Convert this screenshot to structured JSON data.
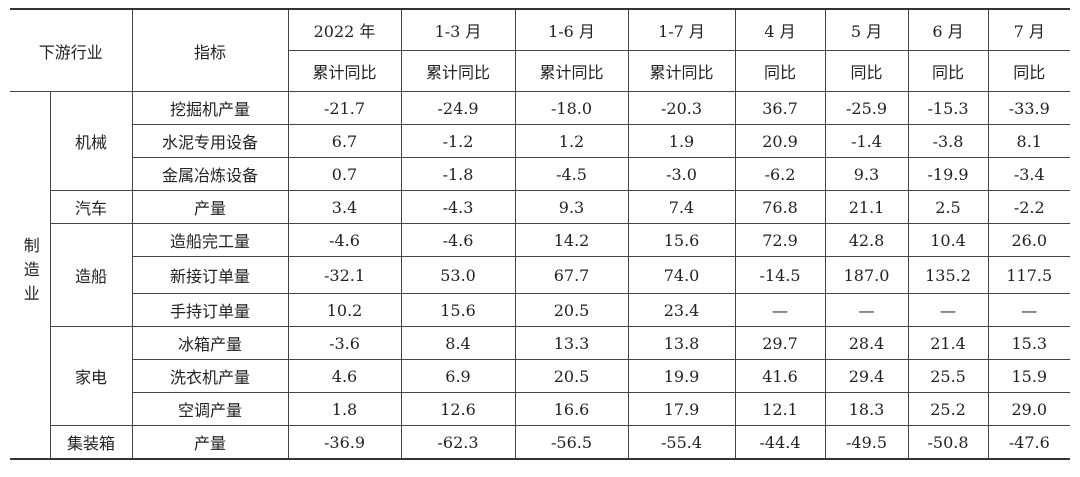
{
  "header": {
    "industry": "下游行业",
    "indicator": "指标",
    "periods": [
      "2022 年",
      "1-3 月",
      "1-6 月",
      "1-7 月",
      "4 月",
      "5 月",
      "6 月",
      "7 月"
    ],
    "measures": [
      "累计同比",
      "累计同比",
      "累计同比",
      "累计同比",
      "同比",
      "同比",
      "同比",
      "同比"
    ]
  },
  "sector": "制造业",
  "groups": [
    {
      "name": "机械",
      "rows": [
        {
          "indicator": "挖掘机产量",
          "values": [
            "-21.7",
            "-24.9",
            "-18.0",
            "-20.3",
            "36.7",
            "-25.9",
            "-15.3",
            "-33.9"
          ]
        },
        {
          "indicator": "水泥专用设备",
          "values": [
            "6.7",
            "-1.2",
            "1.2",
            "1.9",
            "20.9",
            "-1.4",
            "-3.8",
            "8.1"
          ]
        },
        {
          "indicator": "金属冶炼设备",
          "values": [
            "0.7",
            "-1.8",
            "-4.5",
            "-3.0",
            "-6.2",
            "9.3",
            "-19.9",
            "-3.4"
          ]
        }
      ]
    },
    {
      "name": "汽车",
      "rows": [
        {
          "indicator": "产量",
          "values": [
            "3.4",
            "-4.3",
            "9.3",
            "7.4",
            "76.8",
            "21.1",
            "2.5",
            "-2.2"
          ]
        }
      ]
    },
    {
      "name": "造船",
      "rows": [
        {
          "indicator": "造船完工量",
          "values": [
            "-4.6",
            "-4.6",
            "14.2",
            "15.6",
            "72.9",
            "42.8",
            "10.4",
            "26.0"
          ]
        },
        {
          "indicator": "新接订单量",
          "values": [
            "-32.1",
            "53.0",
            "67.7",
            "74.0",
            "-14.5",
            "187.0",
            "135.2",
            "117.5"
          ]
        },
        {
          "indicator": "手持订单量",
          "values": [
            "10.2",
            "15.6",
            "20.5",
            "23.4",
            "—",
            "—",
            "—",
            "—"
          ]
        }
      ]
    },
    {
      "name": "家电",
      "rows": [
        {
          "indicator": "冰箱产量",
          "values": [
            "-3.6",
            "8.4",
            "13.3",
            "13.8",
            "29.7",
            "28.4",
            "21.4",
            "15.3"
          ]
        },
        {
          "indicator": "洗衣机产量",
          "values": [
            "4.6",
            "6.9",
            "20.5",
            "19.9",
            "41.6",
            "29.4",
            "25.5",
            "15.9"
          ]
        },
        {
          "indicator": "空调产量",
          "values": [
            "1.8",
            "12.6",
            "16.6",
            "17.9",
            "12.1",
            "18.3",
            "25.2",
            "29.0"
          ]
        }
      ]
    },
    {
      "name": "集装箱",
      "rows": [
        {
          "indicator": "产量",
          "values": [
            "-36.9",
            "-62.3",
            "-56.5",
            "-55.4",
            "-44.4",
            "-49.5",
            "-50.8",
            "-47.6"
          ]
        }
      ]
    }
  ]
}
